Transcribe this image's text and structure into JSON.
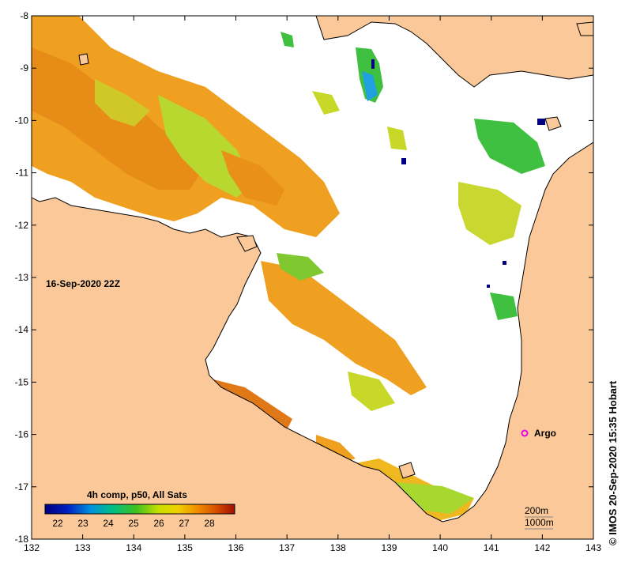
{
  "map": {
    "timestamp": "16-Sep-2020 22Z",
    "credit": "© IMOS 20-Sep-2020 15:35 Hobart",
    "x_ticks": [
      "132",
      "133",
      "134",
      "135",
      "136",
      "137",
      "138",
      "139",
      "140",
      "141",
      "142",
      "143"
    ],
    "y_ticks": [
      "-8",
      "-9",
      "-10",
      "-11",
      "-12",
      "-13",
      "-14",
      "-15",
      "-16",
      "-17",
      "-18"
    ],
    "lon_range": [
      132,
      143
    ],
    "lat_range": [
      -18,
      -8
    ]
  },
  "colorbar": {
    "title": "4h comp, p50, All Sats",
    "ticks": [
      "22",
      "23",
      "24",
      "25",
      "26",
      "27",
      "28"
    ],
    "range": [
      21.5,
      29
    ]
  },
  "argo": {
    "label": "Argo",
    "color": "#e600e6",
    "lon": 141.7,
    "lat": -16.0
  },
  "contours": {
    "label_200m": "200m",
    "label_1000m": "1000m"
  },
  "colors": {
    "land": "#fbc999",
    "ocean": "#ffffff",
    "coast": "#000000"
  }
}
